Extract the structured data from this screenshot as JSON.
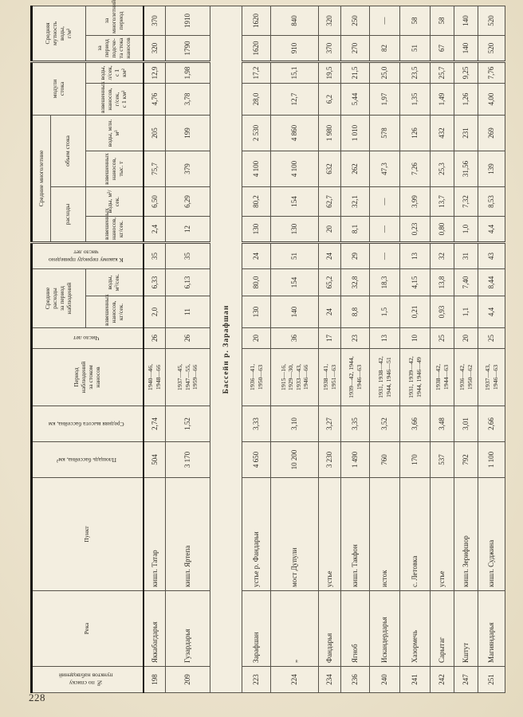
{
  "page": {
    "number": "228"
  },
  "table": {
    "headers": {
      "no": "№ по списку\nпунктов наблюдений",
      "river": "Река",
      "point": "Пункт",
      "area": "Площадь бассейна, км²",
      "height": "Средняя высота бассейна, км",
      "period": "Период\nнаблюдений\nза стоком\nнаносов",
      "years": "Число лет",
      "obs_group": "Средние\nрасходы\nза период\nнаблюдений",
      "obs_sediment": "взвешенных\nнаносов, кг/сек.",
      "obs_water": "воды, м³/сек.",
      "reduced": "К какому периоду приведено\nчисло лет",
      "longterm_group": "Средние многолетние",
      "discharge_group": "расходы",
      "discharge_sediment": "взвешенных\nнаносов, кг/сек.",
      "discharge_water": "воды, м³/сек.",
      "volume_group": "объем стока",
      "volume_sediment": "взвешенных\nнаносов, тыс. т",
      "volume_water": "воды, млн. м³",
      "moduli_group": "модули\nстока",
      "moduli_sediment": "взвешенных\nнаносов, г/сек,\nс 1 км²",
      "moduli_water": "воды, л/сек,\nс 1 км²",
      "turbidity_group": "Средняя\nмутность\nводы,\nг/м³",
      "turbidity_period": "за период подсче-\nта стока наносов",
      "turbidity_longterm": "за многолетний\nпериод"
    },
    "rows": [
      {
        "type": "data",
        "no": "198",
        "river": "Яккабагдарья",
        "point": "кишл. Татар",
        "values": [
          "504",
          "2,74",
          "1940—46,\n1948—66",
          "26",
          "2,0",
          "6,33",
          "35",
          "2,4",
          "6,50",
          "75,7",
          "205",
          "4,76",
          "12,9",
          "320",
          "370"
        ]
      },
      {
        "type": "data",
        "no": "209",
        "river": "Гузардарья",
        "point": "кишл. Яртепа",
        "values": [
          "3 170",
          "1,52",
          "1937—45,\n1947—55,\n1959—66",
          "26",
          "11",
          "6,13",
          "35",
          "12",
          "6,29",
          "379",
          "199",
          "3,78",
          "1,98",
          "1790",
          "1910"
        ]
      },
      {
        "type": "section",
        "label": "Бассейн р. Зарафшан"
      },
      {
        "type": "data",
        "no": "223",
        "river": "Зарафшан",
        "point": "устье р. Фандарьи",
        "values": [
          "4 650",
          "3,33",
          "1936—41,\n1950—63",
          "20",
          "130",
          "80,0",
          "24",
          "130",
          "80,2",
          "4 100",
          "2 530",
          "28,0",
          "17,2",
          "1620",
          "1620"
        ]
      },
      {
        "type": "data",
        "no": "224",
        "river": "„",
        "point": "мост Дупули",
        "values": [
          "10 200",
          "3,10",
          "1915—16,\n1929—30,\n1933—43,\n1946—66",
          "36",
          "140",
          "154",
          "51",
          "130",
          "154",
          "4 100",
          "4 860",
          "12,7",
          "15,1",
          "910",
          "840"
        ]
      },
      {
        "type": "data",
        "no": "234",
        "river": "Фандарья",
        "point": "устье",
        "values": [
          "3 230",
          "3,27",
          "1938—41,\n1951—63",
          "17",
          "24",
          "65,2",
          "24",
          "20",
          "62,7",
          "632",
          "1 980",
          "6,2",
          "19,5",
          "370",
          "320"
        ]
      },
      {
        "type": "data",
        "no": "236",
        "river": "Ягноб",
        "point": "кишл. Такфон",
        "values": [
          "1 490",
          "3,35",
          "1939—42, 1944,\n1946—63",
          "23",
          "8,8",
          "32,8",
          "29",
          "8,1",
          "32,1",
          "262",
          "1 010",
          "5,44",
          "21,5",
          "270",
          "250"
        ]
      },
      {
        "type": "data",
        "no": "240",
        "river": "Искандердарья",
        "point": "исток",
        "values": [
          "760",
          "3,52",
          "1931, 1938—42,\n1944, 1946—51",
          "13",
          "1,5",
          "18,3",
          "—",
          "—",
          "—",
          "47,3",
          "578",
          "1,97",
          "25,0",
          "82",
          "—"
        ]
      },
      {
        "type": "data",
        "no": "241",
        "river": "Хазормечь",
        "point": "с. Летовка",
        "values": [
          "170",
          "3,66",
          "1931, 1939—42,\n1944, 1946—49",
          "10",
          "0,21",
          "4,15",
          "13",
          "0,23",
          "3,99",
          "7,26",
          "126",
          "1,35",
          "23,5",
          "51",
          "58"
        ]
      },
      {
        "type": "data",
        "no": "242",
        "river": "Сарытаг",
        "point": "устье",
        "values": [
          "537",
          "3,48",
          "1938—42,\n1944—63",
          "25",
          "0,93",
          "13,8",
          "32",
          "0,80",
          "13,7",
          "25,3",
          "432",
          "1,49",
          "25,7",
          "67",
          "58"
        ]
      },
      {
        "type": "data",
        "no": "247",
        "river": "Кштут",
        "point": "кишл. Зерифшор",
        "values": [
          "792",
          "3,01",
          "1936—42,\n1950—62",
          "20",
          "1,1",
          "7,40",
          "31",
          "1,0",
          "7,32",
          "31,56",
          "231",
          "1,26",
          "9,25",
          "140",
          "140"
        ]
      },
      {
        "type": "data",
        "no": "251",
        "river": "Магияндарья",
        "point": "кишл. Суджина",
        "values": [
          "1 100",
          "2,66",
          "1937—43,\n1946—63",
          "25",
          "4,4",
          "8,44",
          "43",
          "4,4",
          "8,53",
          "139",
          "269",
          "4,00",
          "7,76",
          "520",
          "520"
        ]
      }
    ]
  }
}
